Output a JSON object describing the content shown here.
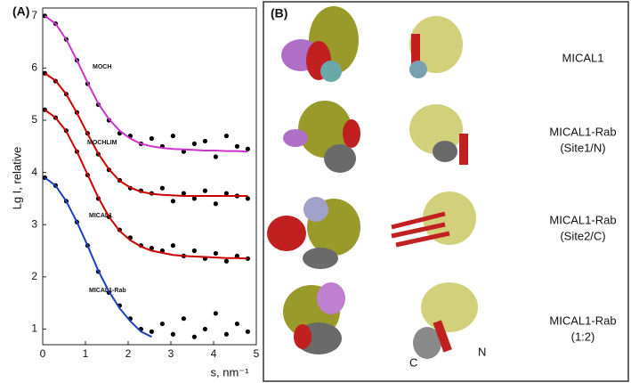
{
  "chart_data": {
    "type": "scatter",
    "panel_label": "(A)",
    "xlabel": "s, nm⁻¹",
    "ylabel": "Lg I, relative",
    "xlim": [
      0,
      5
    ],
    "ylim": [
      0.7,
      7.15
    ],
    "xticks": [
      0,
      1,
      2,
      3,
      4,
      5
    ],
    "yticks": [
      1,
      2,
      3,
      4,
      5,
      6,
      7
    ],
    "point_color": "#000000",
    "x": [
      0.05,
      0.3,
      0.55,
      0.8,
      1.05,
      1.3,
      1.55,
      1.8,
      2.05,
      2.3,
      2.55,
      2.8,
      3.05,
      3.3,
      3.55,
      3.8,
      4.05,
      4.3,
      4.55,
      4.8
    ],
    "series": [
      {
        "name": "MOCH",
        "color": "#cc33cc",
        "values": [
          7.0,
          6.85,
          6.55,
          6.15,
          5.7,
          5.3,
          5.0,
          4.75,
          4.7,
          4.55,
          4.65,
          4.5,
          4.7,
          4.4,
          4.55,
          4.6,
          4.3,
          4.7,
          4.5,
          4.45
        ],
        "fit": [
          7.0,
          6.85,
          6.55,
          6.15,
          5.72,
          5.32,
          5.02,
          4.8,
          4.65,
          4.55,
          4.5,
          4.47,
          4.45,
          4.44,
          4.43,
          4.42,
          4.42,
          4.41,
          4.41,
          4.4
        ]
      },
      {
        "name": "MOCHLIM",
        "color": "#cc0000",
        "values": [
          5.9,
          5.75,
          5.5,
          5.15,
          4.75,
          4.35,
          4.05,
          3.85,
          3.7,
          3.65,
          3.6,
          3.7,
          3.45,
          3.6,
          3.5,
          3.65,
          3.4,
          3.6,
          3.55,
          3.5
        ],
        "fit": [
          5.9,
          5.76,
          5.5,
          5.14,
          4.74,
          4.36,
          4.06,
          3.84,
          3.71,
          3.63,
          3.59,
          3.57,
          3.56,
          3.55,
          3.55,
          3.55,
          3.55,
          3.55,
          3.55,
          3.55
        ]
      },
      {
        "name": "MICAL1",
        "color": "#cc0000",
        "values": [
          5.2,
          5.05,
          4.8,
          4.4,
          3.95,
          3.5,
          3.15,
          2.9,
          2.75,
          2.6,
          2.55,
          2.5,
          2.6,
          2.4,
          2.5,
          2.35,
          2.45,
          2.3,
          2.4,
          2.35
        ],
        "fit": [
          5.2,
          5.05,
          4.79,
          4.4,
          3.96,
          3.52,
          3.15,
          2.88,
          2.7,
          2.58,
          2.5,
          2.46,
          2.42,
          2.4,
          2.39,
          2.38,
          2.37,
          2.36,
          2.36,
          2.35
        ]
      },
      {
        "name": "MICAL1-Rab",
        "color": "#1f3fbf",
        "values": [
          3.9,
          3.75,
          3.45,
          3.05,
          2.6,
          2.1,
          1.7,
          1.45,
          1.2,
          1.0,
          0.95,
          1.1,
          0.9,
          1.2,
          0.85,
          1.0,
          1.3,
          0.9,
          1.1,
          0.95
        ],
        "fit": [
          3.9,
          3.75,
          3.45,
          3.05,
          2.6,
          2.12,
          1.72,
          1.4,
          1.15,
          0.95,
          0.85,
          null,
          null,
          null,
          null,
          null,
          null,
          null,
          null,
          null
        ]
      }
    ]
  },
  "panel_b": {
    "panel_label": "(B)",
    "rows": [
      [
        "MICAL1"
      ],
      [
        "MICAL1-Rab",
        "(Site1/N)"
      ],
      [
        "MICAL1-Rab",
        "(Site2/C)"
      ],
      [
        "MICAL1-Rab",
        "(1:2)"
      ]
    ],
    "terminus_labels": [
      "C",
      "N"
    ]
  }
}
